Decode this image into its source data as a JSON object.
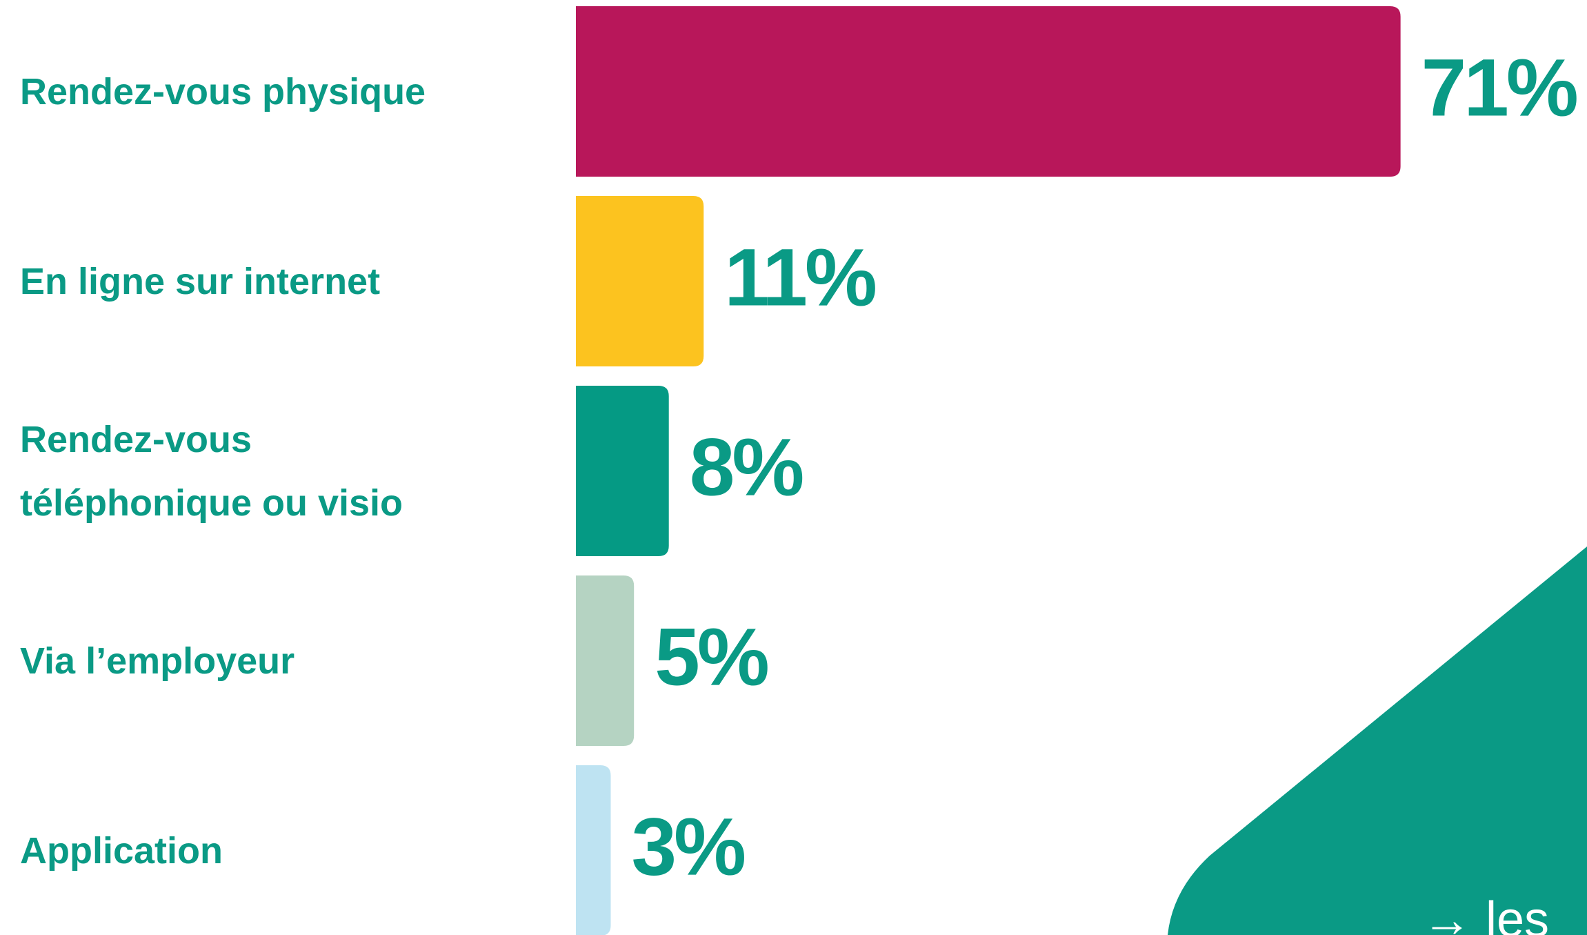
{
  "chart_data": {
    "type": "bar",
    "orientation": "horizontal",
    "categories": [
      "Rendez-vous physique",
      "En ligne sur internet",
      "Rendez-vous\ntéléphonique ou visio",
      "Via l’employeur",
      "Application"
    ],
    "values": [
      71,
      11,
      8,
      5,
      3
    ],
    "value_labels": [
      "71%",
      "11%",
      "8%",
      "5%",
      "3%"
    ],
    "colors": [
      "#b8175a",
      "#fcc31f",
      "#059a84",
      "#b5d3c2",
      "#bee3f2"
    ],
    "annotation": "→ les"
  }
}
